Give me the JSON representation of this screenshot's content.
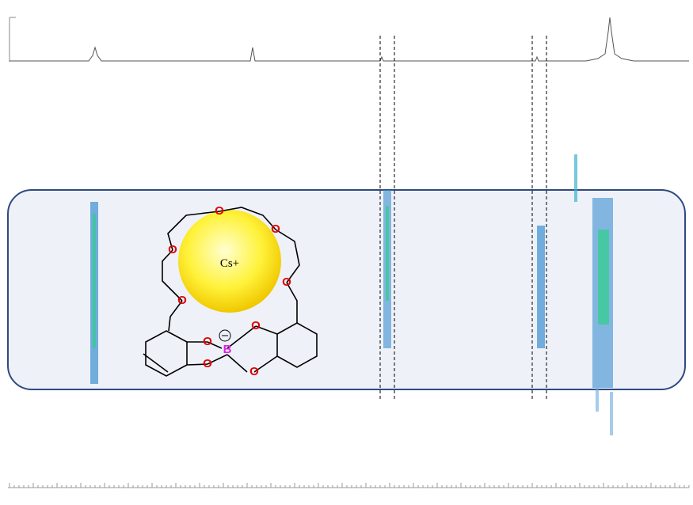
{
  "structure": {
    "cation": "Cs+",
    "oxygen": "O",
    "boron": "B"
  }
}
